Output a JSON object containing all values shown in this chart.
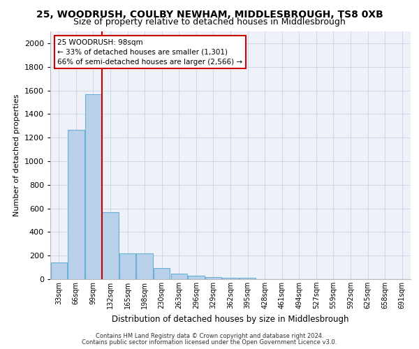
{
  "title1": "25, WOODRUSH, COULBY NEWHAM, MIDDLESBROUGH, TS8 0XB",
  "title2": "Size of property relative to detached houses in Middlesbrough",
  "xlabel": "Distribution of detached houses by size in Middlesbrough",
  "ylabel": "Number of detached properties",
  "footer1": "Contains HM Land Registry data © Crown copyright and database right 2024.",
  "footer2": "Contains public sector information licensed under the Open Government Licence v3.0.",
  "annotation_title": "25 WOODRUSH: 98sqm",
  "annotation_line1": "← 33% of detached houses are smaller (1,301)",
  "annotation_line2": "66% of semi-detached houses are larger (2,566) →",
  "categories": [
    "33sqm",
    "66sqm",
    "99sqm",
    "132sqm",
    "165sqm",
    "198sqm",
    "230sqm",
    "263sqm",
    "296sqm",
    "329sqm",
    "362sqm",
    "395sqm",
    "428sqm",
    "461sqm",
    "494sqm",
    "527sqm",
    "559sqm",
    "592sqm",
    "625sqm",
    "658sqm",
    "691sqm"
  ],
  "values": [
    140,
    1265,
    1570,
    570,
    220,
    220,
    95,
    50,
    30,
    15,
    10,
    10,
    0,
    0,
    0,
    0,
    0,
    0,
    0,
    0,
    0
  ],
  "bar_color": "#b8d0ea",
  "bar_edge_color": "#6baed6",
  "vline_color": "#cc0000",
  "vline_x_idx": 2,
  "annotation_box_color": "#cc0000",
  "grid_color": "#d0d8e8",
  "ylim": [
    0,
    2100
  ],
  "yticks": [
    0,
    200,
    400,
    600,
    800,
    1000,
    1200,
    1400,
    1600,
    1800,
    2000
  ],
  "bg_color": "#eef2f8",
  "title1_fontsize": 10,
  "title2_fontsize": 9
}
